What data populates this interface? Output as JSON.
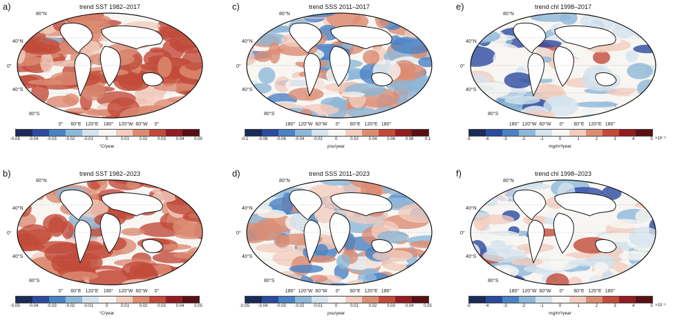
{
  "colorscale": [
    "#1b2a58",
    "#2c4aa0",
    "#4a82c4",
    "#8db8d8",
    "#d4e3ee",
    "#f7f6f3",
    "#f1cdbf",
    "#dc8c73",
    "#c24b3a",
    "#931d22",
    "#5a0f14"
  ],
  "panels": [
    {
      "letter": "a)",
      "title": "trend SST 1982–2017",
      "variable": "sst",
      "lat_labels": [
        "80°N",
        "40°N",
        "0°",
        "40°S",
        "80°S"
      ],
      "lon_labels": [
        "0°",
        "60°E",
        "120°E",
        "180°",
        "120°W",
        "60°W",
        "0°"
      ],
      "ticks": [
        "-0.05",
        "-0.04",
        "-0.03",
        "-0.02",
        "-0.01",
        "0",
        "0.01",
        "0.02",
        "0.03",
        "0.04",
        "0.05"
      ],
      "unit": "°C/year",
      "exponent": ""
    },
    {
      "letter": "c)",
      "title": "trend SSS 2011–2017",
      "variable": "sss",
      "lat_labels": [
        "80°N",
        "40°N",
        "0°",
        "40°S",
        "80°S"
      ],
      "lon_labels": [
        "180°",
        "120°W",
        "60°W",
        "0°",
        "60°E",
        "120°E",
        "180°"
      ],
      "ticks": [
        "-0.1",
        "-0.08",
        "-0.06",
        "-0.04",
        "-0.02",
        "0",
        "0.02",
        "0.04",
        "0.06",
        "0.08",
        "0.1"
      ],
      "unit": "psu/year",
      "exponent": ""
    },
    {
      "letter": "e)",
      "title": "trend chl 1998–2017",
      "variable": "chl",
      "lat_labels": [
        "80°N",
        "40°N",
        "0°",
        "40°S",
        "80°S"
      ],
      "lon_labels": [
        "180°",
        "120°W",
        "60°W",
        "0°",
        "60°E",
        "120°E",
        "180°"
      ],
      "ticks": [
        "-5",
        "-4",
        "-3",
        "-2",
        "-1",
        "0",
        "1",
        "2",
        "3",
        "4",
        "5"
      ],
      "unit": "mg/m³/year",
      "exponent": "×10⁻³"
    },
    {
      "letter": "b)",
      "title": "trend SST 1982–2023",
      "variable": "sst",
      "lat_labels": [
        "80°N",
        "40°N",
        "0°",
        "40°S",
        "80°S"
      ],
      "lon_labels": [
        "0°",
        "60°E",
        "120°E",
        "180°",
        "120°W",
        "60°W",
        "0°"
      ],
      "ticks": [
        "-0.05",
        "-0.04",
        "-0.03",
        "-0.02",
        "-0.01",
        "0",
        "0.01",
        "0.02",
        "0.03",
        "0.04",
        "0.05"
      ],
      "unit": "°C/year",
      "exponent": ""
    },
    {
      "letter": "d)",
      "title": "trend SSS 2011–2023",
      "variable": "sss",
      "lat_labels": [
        "80°N",
        "40°N",
        "0°",
        "40°S",
        "80°S"
      ],
      "lon_labels": [
        "180°",
        "120°W",
        "60°W",
        "0°",
        "60°E",
        "120°E",
        "180°"
      ],
      "ticks": [
        "-0.05",
        "-0.04",
        "-0.03",
        "-0.02",
        "-0.01",
        "0",
        "0.01",
        "0.02",
        "0.03",
        "0.04",
        "0.05"
      ],
      "unit": "psu/year",
      "exponent": ""
    },
    {
      "letter": "f)",
      "title": "trend chl 1998–2023",
      "variable": "chl",
      "lat_labels": [
        "80°N",
        "40°N",
        "0°",
        "40°S",
        "80°S"
      ],
      "lon_labels": [
        "180°",
        "120°W",
        "60°W",
        "0°",
        "60°E",
        "120°E",
        "180°"
      ],
      "ticks": [
        "-5",
        "-4",
        "-3",
        "-2",
        "-1",
        "0",
        "1",
        "2",
        "3",
        "4",
        "5"
      ],
      "unit": "mg/m³/year",
      "exponent": "×10⁻³"
    }
  ]
}
